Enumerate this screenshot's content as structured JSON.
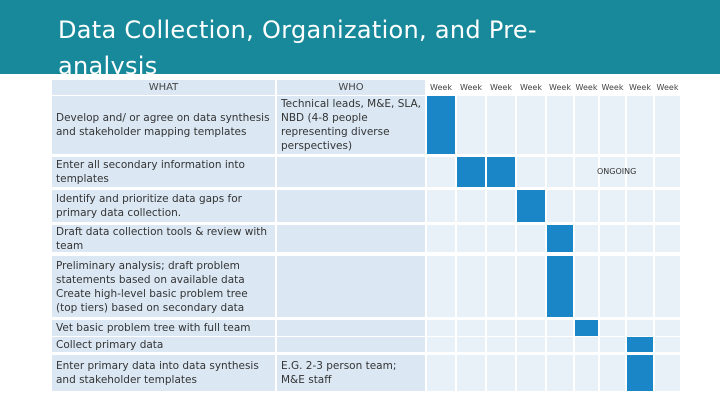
{
  "header": {
    "title": "Data Collection, Organization, and Pre-analysis"
  },
  "table": {
    "columns": [
      "WHAT",
      "WHO",
      "Week",
      "Week",
      "Week",
      "Week",
      "Week",
      "Week",
      "Week",
      "Week",
      "Week"
    ],
    "rows": [
      {
        "what": [
          "Develop and/ or agree on data synthesis and stakeholder mapping templates"
        ],
        "who": "Technical leads, M&E, SLA, NBD (4-8 people representing diverse perspectives)",
        "active": [
          0
        ]
      },
      {
        "what": [
          "Enter all secondary information into templates"
        ],
        "active": [
          1,
          2
        ],
        "note": "ONGOING"
      },
      {
        "what": [
          "Identify and prioritize data gaps for primary data collection."
        ],
        "active": [
          3
        ]
      },
      {
        "what": [
          "Draft data collection tools & review with team"
        ],
        "active": [
          4
        ]
      },
      {
        "what": [
          "Preliminary analysis; draft problem statements based on available data",
          "Create high-level basic problem tree (top tiers) based on secondary data"
        ],
        "active": [
          4
        ]
      },
      {
        "what": [
          "Vet basic problem tree with full team"
        ],
        "active": [
          5
        ]
      },
      {
        "what": [
          "Collect primary data"
        ],
        "active": [
          7
        ]
      },
      {
        "what": [
          "Enter primary data into data synthesis and stakeholder templates"
        ],
        "who": "E.G. 2-3 person team; M&E staff",
        "active": [
          7
        ]
      }
    ]
  }
}
